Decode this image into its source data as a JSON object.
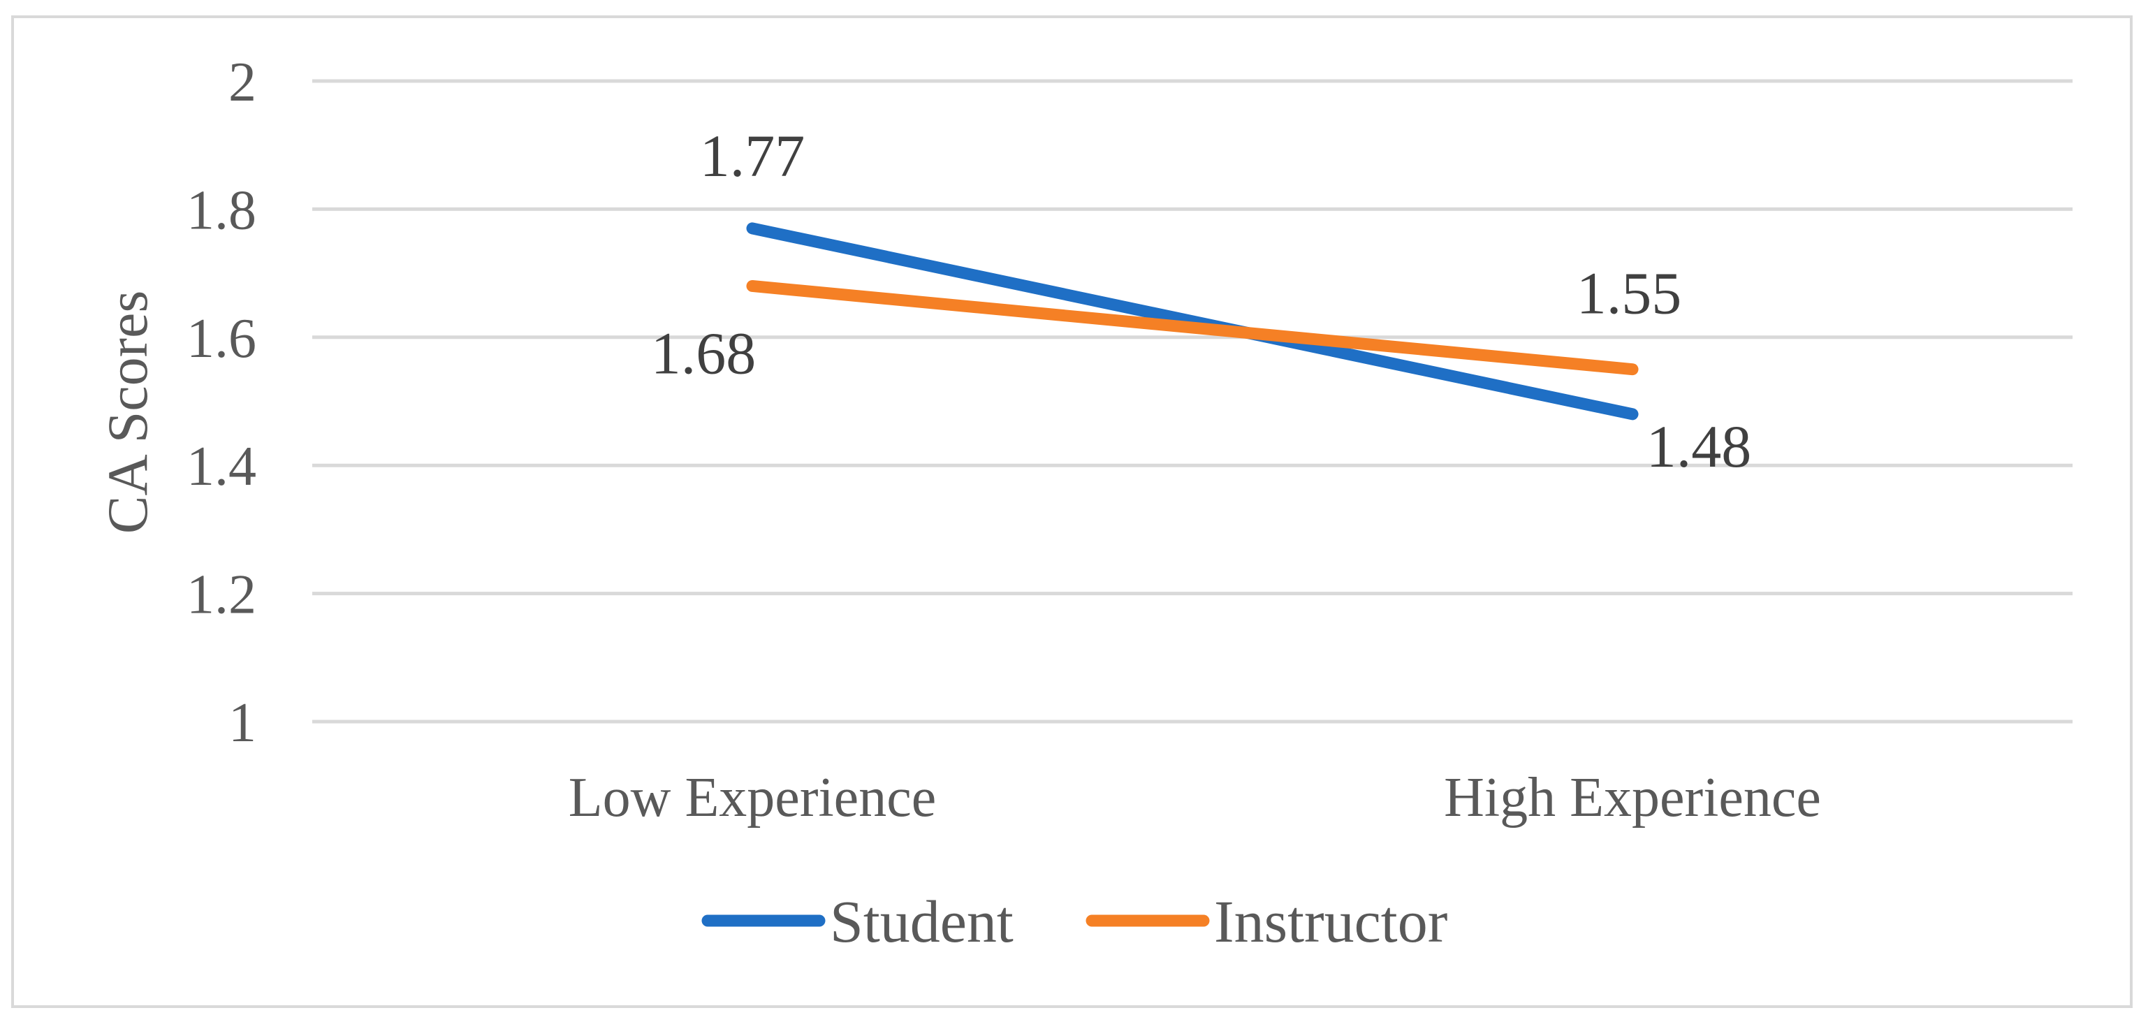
{
  "chart_data": {
    "type": "line",
    "title": "",
    "xlabel": "",
    "ylabel": "CA Scores",
    "categories": [
      "Low Experience",
      "High Experience"
    ],
    "ylim": [
      1,
      2
    ],
    "yticks": [
      "1",
      "1.2",
      "1.4",
      "1.6",
      "1.8",
      "2"
    ],
    "grid": true,
    "legend_position": "bottom",
    "series": [
      {
        "name": "Student",
        "color": "#1f6fc5",
        "values": [
          1.77,
          1.48
        ],
        "labels": [
          "1.77",
          "1.48"
        ]
      },
      {
        "name": "Instructor",
        "color": "#f58025",
        "values": [
          1.68,
          1.55
        ],
        "labels": [
          "1.68",
          "1.55"
        ]
      }
    ]
  }
}
